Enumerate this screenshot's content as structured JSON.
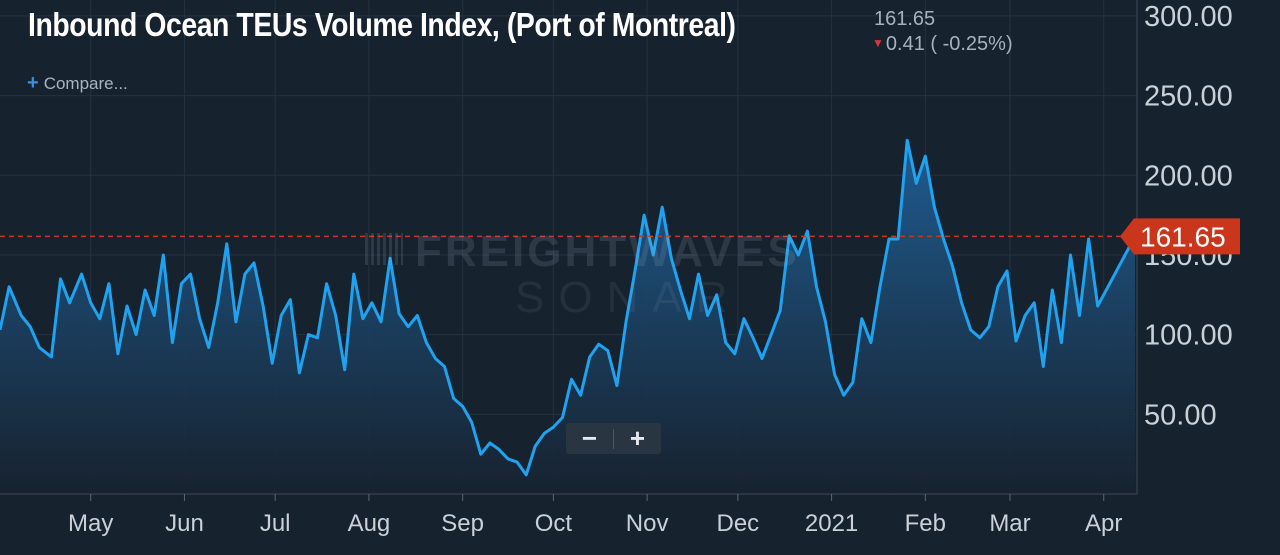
{
  "header": {
    "title": "Inbound Ocean TEUs Volume Index, (Port of Montreal)",
    "last_value": "161.65",
    "change": "0.41 ( -0.25%)",
    "change_direction_color": "#d8343b",
    "compare_label": "Compare..."
  },
  "watermark": {
    "line1": "FREIGHTWAVES",
    "line2": "SONAR"
  },
  "zoom": {
    "minus": "−",
    "plus": "+"
  },
  "colors": {
    "background": "#17222f",
    "line": "#1fa2f0",
    "fill_top": "#1d5a8c",
    "fill_bottom": "#17222f",
    "current_marker": "#c9361c",
    "reference_line": "#c9361c",
    "axis_text": "#c9d0d8",
    "grid": "#243240"
  },
  "chart_data": {
    "type": "area",
    "title": "Inbound Ocean TEUs Volume Index, (Port of Montreal)",
    "xlabel": "",
    "ylabel": "",
    "ylim": [
      0,
      310
    ],
    "grid": true,
    "y_ticks": [
      "300.00",
      "250.00",
      "200.00",
      "150.00",
      "100.00",
      "50.00"
    ],
    "x_ticks": [
      "May",
      "Jun",
      "Jul",
      "Aug",
      "Sep",
      "Oct",
      "Nov",
      "Dec",
      "2021",
      "Feb",
      "Mar",
      "Apr"
    ],
    "current_value": 161.65,
    "current_value_label": "161.65",
    "x_range": [
      "2020-04-01",
      "2021-04-12"
    ],
    "series": [
      {
        "points": [
          [
            "2020-04-01",
            103
          ],
          [
            "2020-04-04",
            130
          ],
          [
            "2020-04-08",
            112
          ],
          [
            "2020-04-11",
            105
          ],
          [
            "2020-04-14",
            92
          ],
          [
            "2020-04-18",
            86
          ],
          [
            "2020-04-21",
            135
          ],
          [
            "2020-04-24",
            120
          ],
          [
            "2020-04-28",
            138
          ],
          [
            "2020-05-01",
            120
          ],
          [
            "2020-05-04",
            110
          ],
          [
            "2020-05-07",
            132
          ],
          [
            "2020-05-10",
            88
          ],
          [
            "2020-05-13",
            118
          ],
          [
            "2020-05-16",
            100
          ],
          [
            "2020-05-19",
            128
          ],
          [
            "2020-05-22",
            112
          ],
          [
            "2020-05-25",
            150
          ],
          [
            "2020-05-28",
            95
          ],
          [
            "2020-05-31",
            132
          ],
          [
            "2020-06-03",
            138
          ],
          [
            "2020-06-06",
            110
          ],
          [
            "2020-06-09",
            92
          ],
          [
            "2020-06-12",
            120
          ],
          [
            "2020-06-15",
            157
          ],
          [
            "2020-06-18",
            108
          ],
          [
            "2020-06-21",
            138
          ],
          [
            "2020-06-24",
            145
          ],
          [
            "2020-06-27",
            118
          ],
          [
            "2020-06-30",
            82
          ],
          [
            "2020-07-03",
            112
          ],
          [
            "2020-07-06",
            122
          ],
          [
            "2020-07-09",
            76
          ],
          [
            "2020-07-12",
            100
          ],
          [
            "2020-07-15",
            98
          ],
          [
            "2020-07-18",
            132
          ],
          [
            "2020-07-21",
            112
          ],
          [
            "2020-07-24",
            78
          ],
          [
            "2020-07-27",
            138
          ],
          [
            "2020-07-30",
            110
          ],
          [
            "2020-08-02",
            120
          ],
          [
            "2020-08-05",
            108
          ],
          [
            "2020-08-08",
            148
          ],
          [
            "2020-08-11",
            113
          ],
          [
            "2020-08-14",
            105
          ],
          [
            "2020-08-17",
            112
          ],
          [
            "2020-08-20",
            95
          ],
          [
            "2020-08-23",
            85
          ],
          [
            "2020-08-26",
            80
          ],
          [
            "2020-08-29",
            60
          ],
          [
            "2020-09-01",
            55
          ],
          [
            "2020-09-04",
            45
          ],
          [
            "2020-09-07",
            25
          ],
          [
            "2020-09-10",
            32
          ],
          [
            "2020-09-13",
            28
          ],
          [
            "2020-09-16",
            22
          ],
          [
            "2020-09-19",
            20
          ],
          [
            "2020-09-22",
            12
          ],
          [
            "2020-09-25",
            30
          ],
          [
            "2020-09-28",
            38
          ],
          [
            "2020-10-01",
            42
          ],
          [
            "2020-10-04",
            48
          ],
          [
            "2020-10-07",
            72
          ],
          [
            "2020-10-10",
            62
          ],
          [
            "2020-10-13",
            86
          ],
          [
            "2020-10-16",
            94
          ],
          [
            "2020-10-19",
            90
          ],
          [
            "2020-10-22",
            68
          ],
          [
            "2020-10-25",
            108
          ],
          [
            "2020-10-28",
            140
          ],
          [
            "2020-10-31",
            175
          ],
          [
            "2020-11-03",
            150
          ],
          [
            "2020-11-06",
            180
          ],
          [
            "2020-11-09",
            148
          ],
          [
            "2020-11-12",
            128
          ],
          [
            "2020-11-15",
            110
          ],
          [
            "2020-11-18",
            138
          ],
          [
            "2020-11-21",
            112
          ],
          [
            "2020-11-24",
            125
          ],
          [
            "2020-11-27",
            95
          ],
          [
            "2020-11-30",
            88
          ],
          [
            "2020-12-03",
            110
          ],
          [
            "2020-12-06",
            98
          ],
          [
            "2020-12-09",
            85
          ],
          [
            "2020-12-12",
            100
          ],
          [
            "2020-12-15",
            115
          ],
          [
            "2020-12-18",
            162
          ],
          [
            "2020-12-21",
            150
          ],
          [
            "2020-12-24",
            165
          ],
          [
            "2020-12-27",
            130
          ],
          [
            "2020-12-30",
            108
          ],
          [
            "2021-01-02",
            75
          ],
          [
            "2021-01-05",
            62
          ],
          [
            "2021-01-08",
            70
          ],
          [
            "2021-01-11",
            110
          ],
          [
            "2021-01-14",
            95
          ],
          [
            "2021-01-17",
            130
          ],
          [
            "2021-01-20",
            160
          ],
          [
            "2021-01-23",
            160
          ],
          [
            "2021-01-26",
            222
          ],
          [
            "2021-01-29",
            195
          ],
          [
            "2021-02-01",
            212
          ],
          [
            "2021-02-04",
            180
          ],
          [
            "2021-02-07",
            160
          ],
          [
            "2021-02-10",
            143
          ],
          [
            "2021-02-13",
            120
          ],
          [
            "2021-02-16",
            103
          ],
          [
            "2021-02-19",
            98
          ],
          [
            "2021-02-22",
            105
          ],
          [
            "2021-02-25",
            130
          ],
          [
            "2021-02-28",
            140
          ],
          [
            "2021-03-03",
            96
          ],
          [
            "2021-03-06",
            112
          ],
          [
            "2021-03-09",
            120
          ],
          [
            "2021-03-12",
            80
          ],
          [
            "2021-03-15",
            128
          ],
          [
            "2021-03-18",
            95
          ],
          [
            "2021-03-21",
            150
          ],
          [
            "2021-03-24",
            112
          ],
          [
            "2021-03-27",
            160
          ],
          [
            "2021-03-30",
            118
          ]
        ]
      }
    ]
  }
}
